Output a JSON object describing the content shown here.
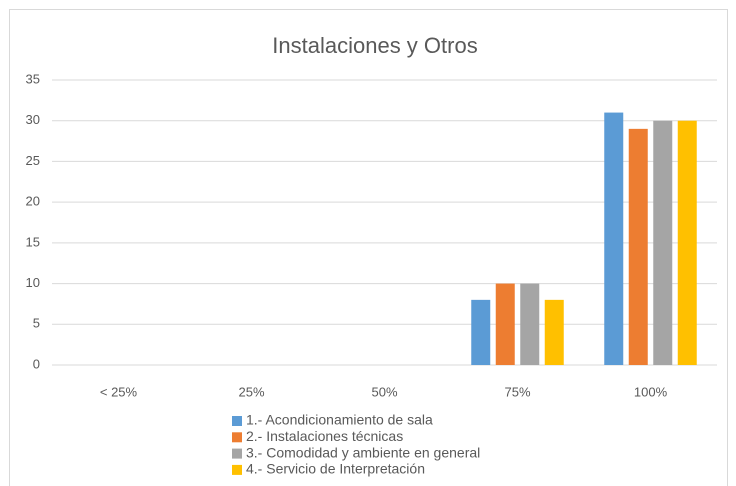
{
  "chart_data": {
    "type": "bar",
    "title": "Instalaciones y Otros",
    "categories": [
      "< 25%",
      "25%",
      "50%",
      "75%",
      "100%"
    ],
    "series": [
      {
        "name": "1.- Acondicionamiento de sala",
        "color": "#5b9bd5",
        "values": [
          0,
          0,
          0,
          8,
          31
        ]
      },
      {
        "name": "2.- Instalaciones técnicas",
        "color": "#ed7d31",
        "values": [
          0,
          0,
          0,
          10,
          29
        ]
      },
      {
        "name": "3.- Comodidad y ambiente en general",
        "color": "#a5a5a5",
        "values": [
          0,
          0,
          0,
          10,
          30
        ]
      },
      {
        "name": "4.- Servicio de Interpretación",
        "color": "#ffc000",
        "values": [
          0,
          0,
          0,
          8,
          30
        ]
      }
    ],
    "ylim": [
      0,
      35
    ],
    "yticks": [
      0,
      5,
      10,
      15,
      20,
      25,
      30,
      35
    ],
    "grid": true,
    "legend": "bottom"
  }
}
